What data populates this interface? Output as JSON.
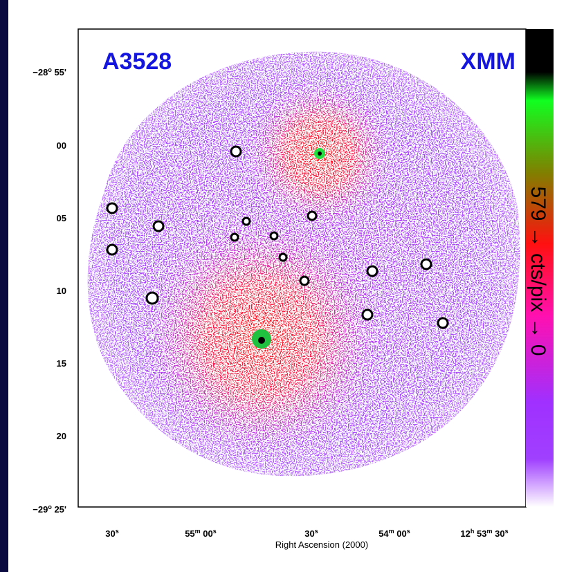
{
  "image": {
    "cluster_label": "A3528",
    "instrument_label": "XMM",
    "colorbar_label": [
      "579",
      " → ",
      "cts/pix",
      " → ",
      "0"
    ],
    "y_tick_labels": [
      [
        "−28",
        "o",
        " 55'"
      ],
      [
        "00"
      ],
      [
        "05"
      ],
      [
        "10"
      ],
      [
        "15"
      ],
      [
        "20"
      ],
      [
        "−29",
        "o",
        " 25'"
      ]
    ],
    "x_tick_labels": [
      [
        "30",
        "s"
      ],
      [
        "55",
        "m",
        " 00",
        "s"
      ],
      [
        "30",
        "s"
      ],
      [
        "54",
        "m",
        " 00",
        "s"
      ],
      [
        "12",
        "h",
        " 53",
        "m",
        " 30",
        "s"
      ]
    ],
    "x_axis_title": "Right Ascension (2000)"
  }
}
